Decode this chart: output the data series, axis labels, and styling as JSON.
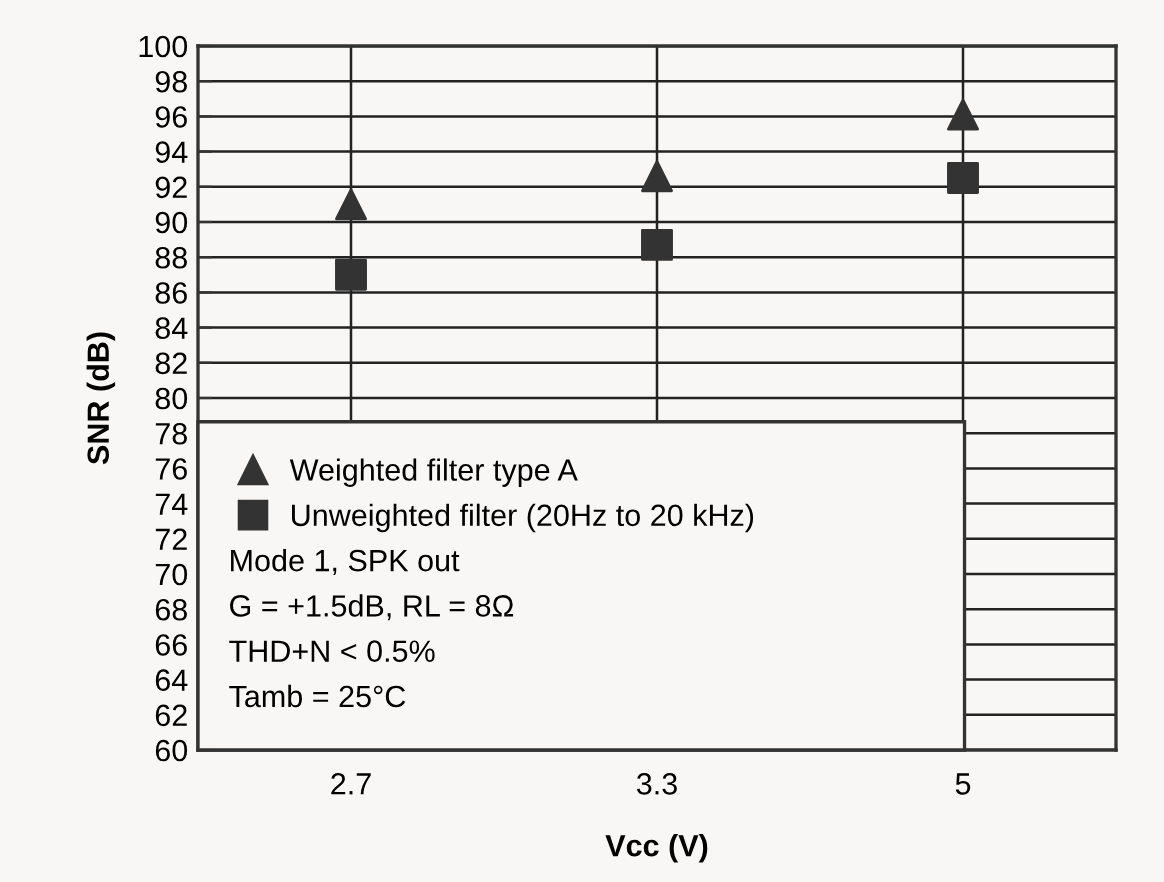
{
  "chart_data": {
    "type": "scatter",
    "xlabel": "Vcc (V)",
    "ylabel": "SNR (dB)",
    "categories": [
      "2.7",
      "3.3",
      "5"
    ],
    "series": [
      {
        "name": "Weighted filter type A",
        "color": "#333333",
        "marker": "triangle",
        "values": [
          91.0,
          92.6,
          96.1
        ]
      },
      {
        "name": "Unweighted filter (20Hz to 20 kHz)",
        "color": "#333333",
        "marker": "square",
        "values": [
          87.0,
          88.7,
          92.5
        ]
      }
    ],
    "ylim": [
      60,
      100
    ],
    "yticks": [
      60,
      62,
      64,
      66,
      68,
      70,
      72,
      74,
      76,
      78,
      80,
      82,
      84,
      86,
      88,
      90,
      92,
      94,
      96,
      98,
      100
    ],
    "grid": true,
    "legend": "bottom left",
    "annotations": [
      "Mode 1, SPK out",
      "G = +1.5dB, RL = 8Ω",
      "THD+N < 0.5%",
      "Tamb = 25°C"
    ]
  }
}
